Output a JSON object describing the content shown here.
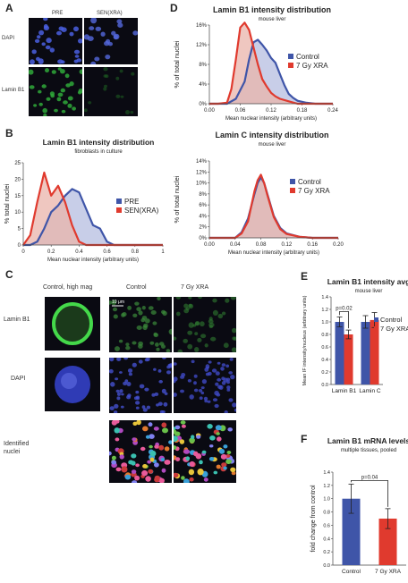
{
  "panels": {
    "a": "A",
    "b": "B",
    "c": "C",
    "d": "D",
    "e": "E",
    "f": "F"
  },
  "panel_a": {
    "col_labels": [
      "PRE",
      "SEN(XRA)"
    ],
    "row_labels": [
      "DAPI",
      "Lamin B1"
    ]
  },
  "panel_c": {
    "col_labels": [
      "Control, high mag",
      "Control",
      "7 Gy XRA"
    ],
    "row_labels": [
      "Lamin B1",
      "DAPI",
      "Identified nuclei"
    ],
    "scale_bar": "10 μm"
  },
  "colors": {
    "blue": "#3f55a8",
    "red": "#e03a2e",
    "blue_fill": "#b6bde0",
    "red_fill": "#eab4ab",
    "micro_bg": "#0a0a12"
  },
  "chart_data": [
    {
      "id": "B",
      "type": "area",
      "title": "Lamin B1 intensity distribution",
      "subtitle": "fibroblasts in culture",
      "xlabel": "Mean nuclear intensity (arbitrary units)",
      "ylabel": "% total nuclei",
      "xlim": [
        0,
        1
      ],
      "ylim": [
        0,
        25
      ],
      "xticks": [
        "0",
        "0.2",
        "0.4",
        "0.6",
        "0.8",
        "1"
      ],
      "yticks": [
        "0",
        "5",
        "10",
        "15",
        "20",
        "25"
      ],
      "legend_position": "right",
      "series": [
        {
          "name": "PRE",
          "color": "#3f55a8",
          "fill": "#b6bde0",
          "x": [
            0,
            0.05,
            0.1,
            0.15,
            0.2,
            0.25,
            0.3,
            0.35,
            0.4,
            0.45,
            0.5,
            0.55,
            0.6,
            0.65,
            0.7,
            0.8,
            0.9,
            1.0
          ],
          "y": [
            0,
            0,
            1,
            5,
            10,
            12,
            15,
            17,
            16,
            11,
            6,
            5,
            1,
            0,
            0,
            0,
            0,
            0
          ]
        },
        {
          "name": "SEN(XRA)",
          "color": "#e03a2e",
          "fill": "#eab4ab",
          "x": [
            0,
            0.05,
            0.1,
            0.15,
            0.2,
            0.25,
            0.3,
            0.35,
            0.4,
            0.45,
            0.5,
            0.6,
            0.7,
            0.8,
            0.9,
            1.0
          ],
          "y": [
            0,
            3,
            13,
            22,
            15,
            18,
            13,
            6,
            1,
            0,
            0,
            0,
            0,
            0,
            0,
            0
          ]
        }
      ]
    },
    {
      "id": "D",
      "type": "area",
      "title": "Lamin B1 intensity distribution",
      "subtitle": "mouse liver",
      "xlabel": "Mean nuclear intensity (arbitrary units)",
      "ylabel": "% of total nuclei",
      "xlim": [
        0,
        0.28
      ],
      "ylim": [
        0,
        0.16
      ],
      "xticks": [
        "0.00",
        "0.06",
        "0.12",
        "0.18",
        "0.24"
      ],
      "yticks": [
        "0%",
        "4%",
        "8%",
        "12%",
        "16%"
      ],
      "legend_position": "right",
      "series": [
        {
          "name": "Control",
          "color": "#3f55a8",
          "fill": "#b6bde0",
          "x": [
            0,
            0.02,
            0.04,
            0.06,
            0.08,
            0.09,
            0.1,
            0.11,
            0.12,
            0.13,
            0.14,
            0.15,
            0.16,
            0.17,
            0.18,
            0.19,
            0.2,
            0.22,
            0.24,
            0.26,
            0.28
          ],
          "y": [
            0,
            0,
            0,
            0.01,
            0.045,
            0.09,
            0.125,
            0.13,
            0.12,
            0.108,
            0.093,
            0.083,
            0.06,
            0.038,
            0.02,
            0.012,
            0.006,
            0.002,
            0,
            0,
            0
          ]
        },
        {
          "name": "7 Gy XRA",
          "color": "#e03a2e",
          "fill": "#eab4ab",
          "x": [
            0,
            0.02,
            0.04,
            0.05,
            0.06,
            0.07,
            0.08,
            0.09,
            0.1,
            0.11,
            0.12,
            0.13,
            0.14,
            0.15,
            0.16,
            0.18,
            0.2,
            0.22,
            0.24,
            0.26,
            0.28
          ],
          "y": [
            0,
            0,
            0.002,
            0.03,
            0.09,
            0.155,
            0.165,
            0.15,
            0.115,
            0.08,
            0.05,
            0.035,
            0.022,
            0.015,
            0.01,
            0.005,
            0,
            0,
            0,
            0,
            0
          ]
        }
      ]
    },
    {
      "id": "D2",
      "type": "area",
      "title": "Lamin C intensity distribution",
      "subtitle": "mouse liver",
      "xlabel": "Mean nuclear intensity (arbitrary units)",
      "ylabel": "% of total nuclei",
      "xlim": [
        0,
        0.2
      ],
      "ylim": [
        0,
        0.14
      ],
      "xticks": [
        "0.00",
        "0.04",
        "0.08",
        "0.12",
        "0.16",
        "0.20"
      ],
      "yticks": [
        "0%",
        "2%",
        "4%",
        "6%",
        "8%",
        "10%",
        "12%",
        "14%"
      ],
      "legend_position": "right",
      "series": [
        {
          "name": "Control",
          "color": "#3f55a8",
          "fill": "#b6bde0",
          "x": [
            0,
            0.02,
            0.04,
            0.05,
            0.06,
            0.07,
            0.075,
            0.08,
            0.085,
            0.09,
            0.1,
            0.11,
            0.12,
            0.14,
            0.16,
            0.18,
            0.2
          ],
          "y": [
            0,
            0,
            0,
            0.01,
            0.035,
            0.08,
            0.1,
            0.11,
            0.1,
            0.08,
            0.04,
            0.018,
            0.008,
            0.002,
            0,
            0,
            0
          ]
        },
        {
          "name": "7 Gy XRA",
          "color": "#e03a2e",
          "fill": "#eab4ab",
          "x": [
            0,
            0.02,
            0.04,
            0.05,
            0.06,
            0.07,
            0.075,
            0.08,
            0.085,
            0.09,
            0.1,
            0.11,
            0.12,
            0.14,
            0.16,
            0.18,
            0.2
          ],
          "y": [
            0,
            0,
            0,
            0.008,
            0.03,
            0.085,
            0.105,
            0.115,
            0.1,
            0.078,
            0.038,
            0.016,
            0.007,
            0.002,
            0,
            0,
            0
          ]
        }
      ]
    },
    {
      "id": "E",
      "type": "bar",
      "title": "Lamin B1 intensity avg",
      "subtitle": "mouse liver",
      "ylabel": "Mean IF intensity/nucleus (arbitrary units)",
      "categories": [
        "Lamin B1",
        "Lamin C"
      ],
      "ylim": [
        0,
        1.4
      ],
      "yticks": [
        "0.0",
        "0.2",
        "0.4",
        "0.6",
        "0.8",
        "1.0",
        "1.2",
        "1.4"
      ],
      "legend_position": "right",
      "annotation": "p=0.02",
      "series": [
        {
          "name": "Control",
          "color": "#3f55a8",
          "values": [
            1.0,
            1.0
          ],
          "errors": [
            0.08,
            0.1
          ]
        },
        {
          "name": "7 Gy XRA",
          "color": "#e03a2e",
          "values": [
            0.8,
            1.03
          ],
          "errors": [
            0.07,
            0.12
          ]
        }
      ]
    },
    {
      "id": "F",
      "type": "bar",
      "title": "Lamin B1 mRNA levels",
      "subtitle": "multiple tissues, pooled",
      "ylabel": "fold change from control",
      "categories": [
        "Control",
        "7 Gy XRA"
      ],
      "ylim": [
        0,
        1.4
      ],
      "yticks": [
        "0.0",
        "0.2",
        "0.4",
        "0.6",
        "0.8",
        "1.0",
        "1.2",
        "1.4"
      ],
      "annotation": "p=0.04",
      "series": [
        {
          "name": "Lamin B1 mRNA",
          "values": [
            1.0,
            0.7
          ],
          "colors": [
            "#3f55a8",
            "#e03a2e"
          ],
          "errors": [
            0.22,
            0.15
          ]
        }
      ]
    }
  ]
}
